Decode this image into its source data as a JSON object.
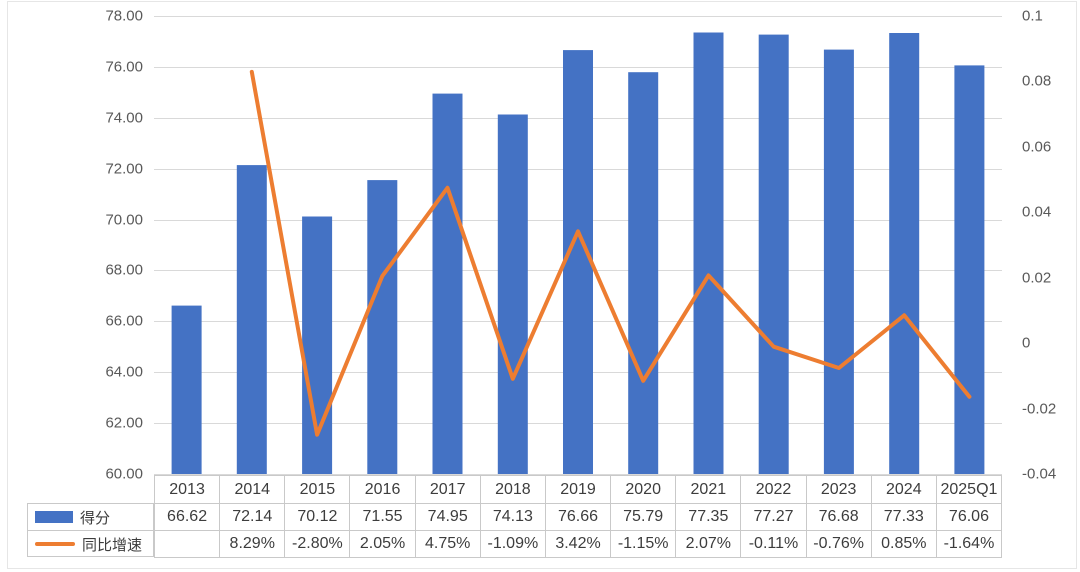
{
  "chart_data": {
    "type": "bar",
    "combo": "bar+line dual-axis",
    "categories": [
      "2013",
      "2014",
      "2015",
      "2016",
      "2017",
      "2018",
      "2019",
      "2020",
      "2021",
      "2022",
      "2023",
      "2024",
      "2025Q1"
    ],
    "series": [
      {
        "name": "得分",
        "type": "bar",
        "axis": "left",
        "values": [
          66.62,
          72.14,
          70.12,
          71.55,
          74.95,
          74.13,
          76.66,
          75.79,
          77.35,
          77.27,
          76.68,
          77.33,
          76.06
        ],
        "value_labels": [
          "66.62",
          "72.14",
          "70.12",
          "71.55",
          "74.95",
          "74.13",
          "76.66",
          "75.79",
          "77.35",
          "77.27",
          "76.68",
          "77.33",
          "76.06"
        ]
      },
      {
        "name": "同比增速",
        "type": "line",
        "axis": "right",
        "values": [
          null,
          0.0829,
          -0.028,
          0.0205,
          0.0475,
          -0.0109,
          0.0342,
          -0.0115,
          0.0207,
          -0.0011,
          -0.0076,
          0.0085,
          -0.0164
        ],
        "value_labels": [
          "",
          "8.29%",
          "-2.80%",
          "2.05%",
          "4.75%",
          "-1.09%",
          "3.42%",
          "-1.15%",
          "2.07%",
          "-0.11%",
          "-0.76%",
          "0.85%",
          "-1.64%"
        ]
      }
    ],
    "left_axis": {
      "min": 60,
      "max": 78,
      "step": 2,
      "labels": [
        "78.00",
        "76.00",
        "74.00",
        "72.00",
        "70.00",
        "68.00",
        "66.00",
        "64.00",
        "62.00",
        "60.00"
      ]
    },
    "right_axis": {
      "min": -0.04,
      "max": 0.1,
      "step": 0.02,
      "labels": [
        "0.1",
        "0.08",
        "0.06",
        "0.04",
        "0.02",
        "0",
        "-0.02",
        "-0.04"
      ]
    },
    "grid": true,
    "legend_position": "bottom-left",
    "colors": {
      "bar": "#4472C4",
      "line": "#ED7D31",
      "gridline": "#D9D9D9",
      "table_border": "#C9C9C9",
      "axis_text": "#595959",
      "table_text": "#3D3D3D"
    }
  },
  "legend": {
    "items": [
      {
        "label": "得分",
        "swatch": "bar-swatch"
      },
      {
        "label": "同比增速",
        "swatch": "line-swatch"
      }
    ]
  }
}
